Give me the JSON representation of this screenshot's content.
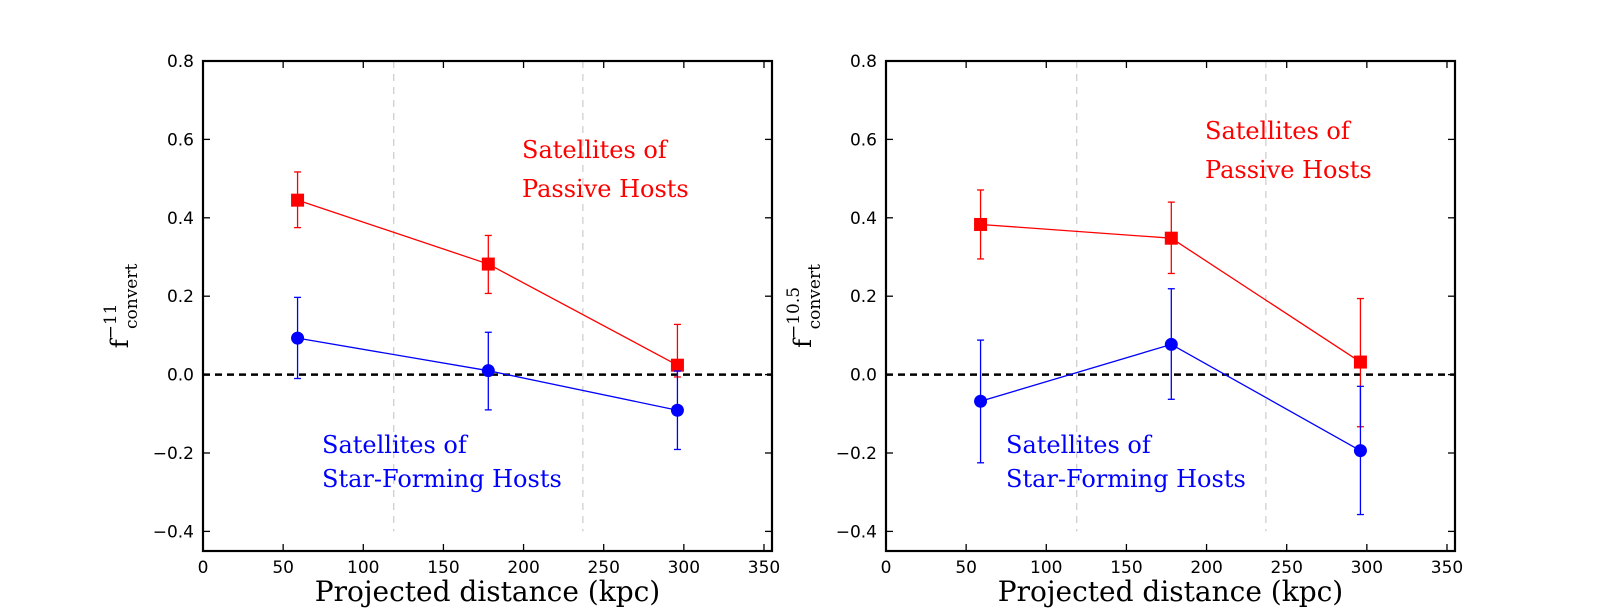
{
  "chart_data": [
    {
      "type": "line",
      "xlabel": "Projected distance (kpc)",
      "ylabel": {
        "base": "f",
        "sup": "−11",
        "sub": "convert"
      },
      "xlim": [
        0,
        355
      ],
      "ylim": [
        -0.45,
        0.8
      ],
      "xticks": [
        0,
        50,
        100,
        150,
        200,
        250,
        300,
        350
      ],
      "yticks": [
        -0.4,
        -0.2,
        0.0,
        0.2,
        0.4,
        0.6,
        0.8
      ],
      "xtick_labels": [
        "0",
        "50",
        "100",
        "150",
        "200",
        "250",
        "300",
        "350"
      ],
      "ytick_labels": [
        "−0.4",
        "−0.2",
        "0.0",
        "0.2",
        "0.4",
        "0.6",
        "0.8"
      ],
      "vlines": [
        119,
        237
      ],
      "hline": 0.0,
      "series": [
        {
          "name": "Satellites of Passive Hosts",
          "color": "#ff0000",
          "marker": "square",
          "x": [
            59,
            178,
            296
          ],
          "y": [
            0.445,
            0.282,
            0.024
          ],
          "err_low": [
            0.07,
            0.075,
            0.03
          ],
          "err_high": [
            0.072,
            0.073,
            0.104
          ]
        },
        {
          "name": "Satellites of Star-Forming Hosts",
          "color": "#0000ff",
          "marker": "circle",
          "x": [
            59,
            178,
            296
          ],
          "y": [
            0.093,
            0.01,
            -0.091
          ],
          "err_low": [
            0.103,
            0.1,
            0.1
          ],
          "err_high": [
            0.104,
            0.098,
            0.1
          ]
        }
      ],
      "annotations": [
        {
          "lines": [
            "Satellites of",
            "Passive Hosts"
          ],
          "color": "#ff0000"
        },
        {
          "lines": [
            "Satellites of",
            "Star-Forming Hosts"
          ],
          "color": "#0000ff"
        }
      ]
    },
    {
      "type": "line",
      "xlabel": "Projected distance (kpc)",
      "ylabel": {
        "base": "f",
        "sup": "−10.5",
        "sub": "convert"
      },
      "xlim": [
        0,
        355
      ],
      "ylim": [
        -0.45,
        0.8
      ],
      "xticks": [
        0,
        50,
        100,
        150,
        200,
        250,
        300,
        350
      ],
      "yticks": [
        -0.4,
        -0.2,
        0.0,
        0.2,
        0.4,
        0.6,
        0.8
      ],
      "xtick_labels": [
        "0",
        "50",
        "100",
        "150",
        "200",
        "250",
        "300",
        "350"
      ],
      "ytick_labels": [
        "−0.4",
        "−0.2",
        "0.0",
        "0.2",
        "0.4",
        "0.6",
        "0.8"
      ],
      "vlines": [
        119,
        237
      ],
      "hline": 0.0,
      "series": [
        {
          "name": "Satellites of Passive Hosts",
          "color": "#ff0000",
          "marker": "square",
          "x": [
            59,
            178,
            296
          ],
          "y": [
            0.383,
            0.348,
            0.032
          ],
          "err_low": [
            0.088,
            0.09,
            0.165
          ],
          "err_high": [
            0.088,
            0.092,
            0.162
          ]
        },
        {
          "name": "Satellites of Star-Forming Hosts",
          "color": "#0000ff",
          "marker": "circle",
          "x": [
            59,
            178,
            296
          ],
          "y": [
            -0.068,
            0.077,
            -0.194
          ],
          "err_low": [
            0.157,
            0.14,
            0.163
          ],
          "err_high": [
            0.156,
            0.142,
            0.164
          ]
        }
      ],
      "annotations": [
        {
          "lines": [
            "Satellites of",
            "Passive Hosts"
          ],
          "color": "#ff0000"
        },
        {
          "lines": [
            "Satellites of",
            "Star-Forming Hosts"
          ],
          "color": "#0000ff"
        }
      ]
    }
  ]
}
